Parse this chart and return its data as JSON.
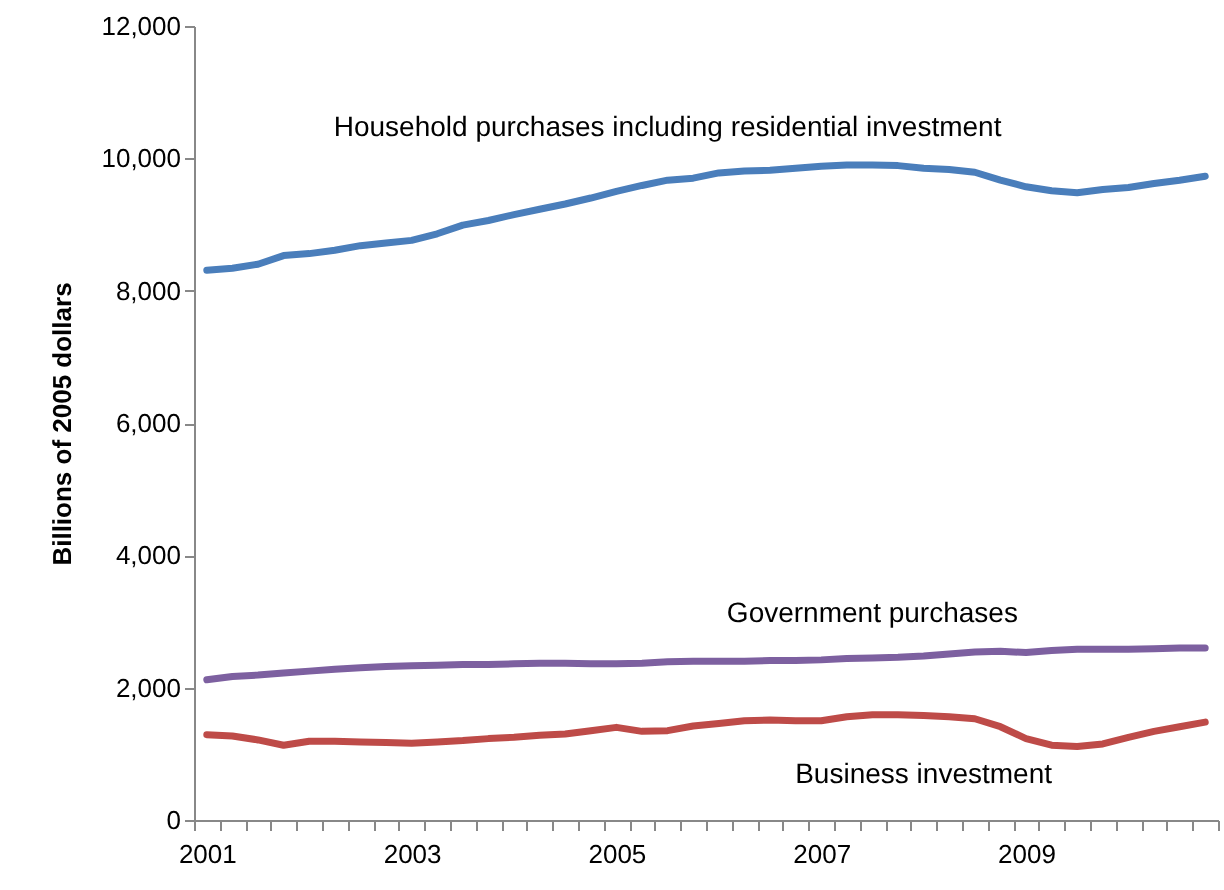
{
  "chart_data": {
    "type": "line",
    "ylabel": "Billions of 2005 dollars",
    "categories": [
      "2001",
      null,
      null,
      null,
      null,
      null,
      null,
      null,
      "2003",
      null,
      null,
      null,
      null,
      null,
      null,
      null,
      "2005",
      null,
      null,
      null,
      null,
      null,
      null,
      null,
      "2007",
      null,
      null,
      null,
      null,
      null,
      null,
      null,
      "2009",
      null,
      null,
      null,
      null,
      null,
      null,
      null
    ],
    "ylim": [
      0,
      12000
    ],
    "yticks": [
      0,
      {
        "value": 2000,
        "label": "2,000"
      },
      {
        "value": 4000,
        "label": "4,000"
      },
      {
        "value": 6000,
        "label": "6,000"
      },
      {
        "value": 8000,
        "label": "8,000"
      },
      {
        "value": 10000,
        "label": "10,000"
      },
      {
        "value": 12000,
        "label": "12,000"
      }
    ],
    "grid": false,
    "series": [
      {
        "name": "Household purchases including residential investment",
        "color": "#4a7ebb",
        "values": [
          8310,
          8340,
          8400,
          8530,
          8560,
          8610,
          8680,
          8720,
          8760,
          8860,
          8990,
          9060,
          9150,
          9230,
          9310,
          9400,
          9500,
          9590,
          9670,
          9700,
          9780,
          9810,
          9820,
          9850,
          9880,
          9900,
          9900,
          9890,
          9850,
          9830,
          9790,
          9670,
          9570,
          9510,
          9480,
          9530,
          9560,
          9620,
          9670,
          9730
        ]
      },
      {
        "name": "Government purchases",
        "color": "#7d60a0",
        "values": [
          2120,
          2170,
          2190,
          2220,
          2250,
          2280,
          2300,
          2320,
          2330,
          2340,
          2350,
          2350,
          2360,
          2370,
          2370,
          2360,
          2360,
          2370,
          2390,
          2400,
          2400,
          2400,
          2410,
          2410,
          2420,
          2440,
          2450,
          2460,
          2480,
          2510,
          2540,
          2550,
          2530,
          2560,
          2580,
          2580,
          2580,
          2590,
          2600,
          2600
        ]
      },
      {
        "name": "Business investment",
        "color": "#be4b48",
        "values": [
          1290,
          1270,
          1210,
          1130,
          1190,
          1190,
          1180,
          1170,
          1160,
          1180,
          1200,
          1230,
          1250,
          1280,
          1300,
          1350,
          1400,
          1340,
          1350,
          1420,
          1460,
          1500,
          1510,
          1500,
          1500,
          1560,
          1590,
          1590,
          1580,
          1560,
          1530,
          1410,
          1230,
          1130,
          1110,
          1150,
          1250,
          1340,
          1410,
          1480
        ]
      }
    ]
  }
}
